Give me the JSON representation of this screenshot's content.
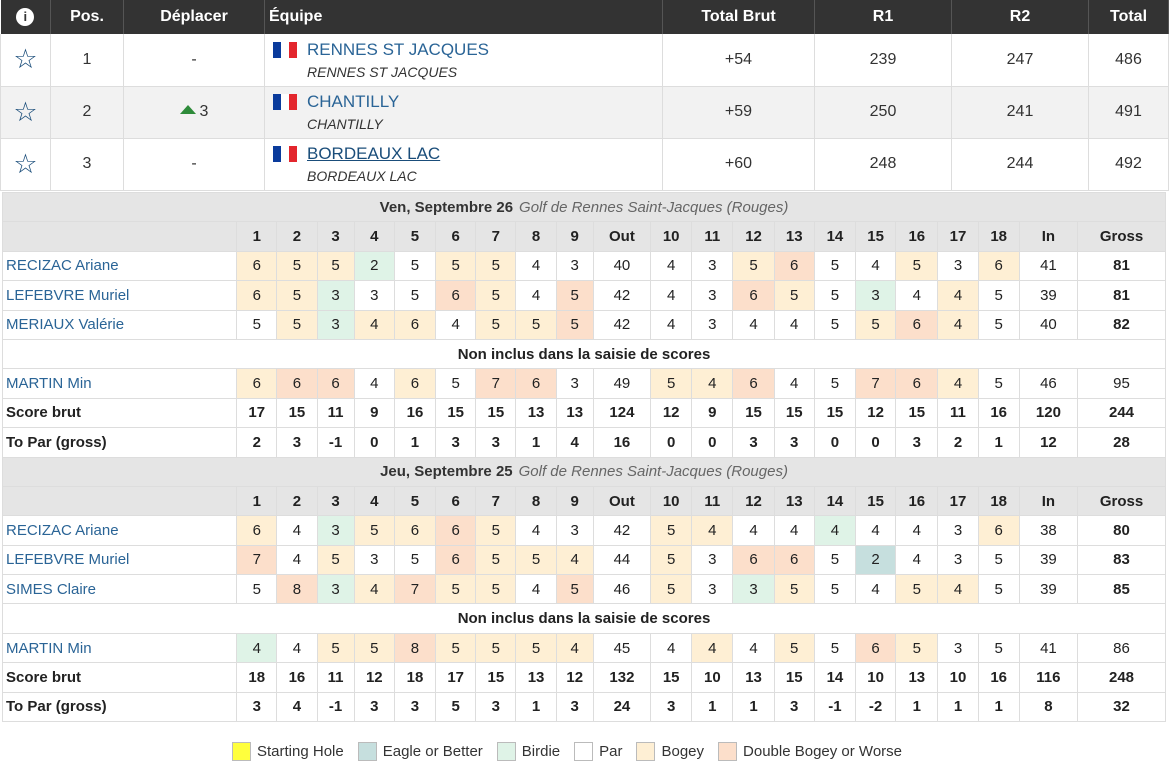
{
  "header": {
    "info": "i",
    "pos": "Pos.",
    "move": "Déplacer",
    "team": "Équipe",
    "total_brut": "Total Brut",
    "r1": "R1",
    "r2": "R2",
    "total": "Total"
  },
  "teams": [
    {
      "pos": "1",
      "move": "-",
      "move_up": false,
      "name": "RENNES ST JACQUES",
      "sub": "RENNES ST JACQUES",
      "total_brut": "+54",
      "r1": "239",
      "r2": "247",
      "total": "486",
      "underline": false
    },
    {
      "pos": "2",
      "move": "3",
      "move_up": true,
      "name": "CHANTILLY",
      "sub": "CHANTILLY",
      "total_brut": "+59",
      "r1": "250",
      "r2": "241",
      "total": "491",
      "underline": false
    },
    {
      "pos": "3",
      "move": "-",
      "move_up": false,
      "name": "BORDEAUX LAC",
      "sub": "BORDEAUX LAC",
      "total_brut": "+60",
      "r1": "248",
      "r2": "244",
      "total": "492",
      "underline": true
    }
  ],
  "flag_colors": [
    "#0a3b9c",
    "#ffffff",
    "#e3262d"
  ],
  "scorecard": {
    "hole_headers": [
      "1",
      "2",
      "3",
      "4",
      "5",
      "6",
      "7",
      "8",
      "9",
      "Out",
      "10",
      "11",
      "12",
      "13",
      "14",
      "15",
      "16",
      "17",
      "18",
      "In",
      "Gross"
    ],
    "not_included_label": "Non inclus dans la saisie de scores",
    "rounds": [
      {
        "date": "Ven, Septembre 26",
        "course": "Golf de Rennes Saint-Jacques (Rouges)",
        "players": [
          {
            "name": "RECIZAC Ariane",
            "cells": [
              [
                "6",
                "g"
              ],
              [
                "5",
                "g"
              ],
              [
                "5",
                "g"
              ],
              [
                "2",
                "b"
              ],
              [
                "5",
                ""
              ],
              [
                "5",
                "g"
              ],
              [
                "5",
                "g"
              ],
              [
                "4",
                ""
              ],
              [
                "3",
                ""
              ],
              [
                "40",
                ""
              ],
              [
                "4",
                ""
              ],
              [
                "3",
                ""
              ],
              [
                "5",
                "g"
              ],
              [
                "6",
                "d"
              ],
              [
                "5",
                ""
              ],
              [
                "4",
                ""
              ],
              [
                "5",
                "g"
              ],
              [
                "3",
                ""
              ],
              [
                "6",
                "g"
              ],
              [
                "41",
                ""
              ],
              [
                "81",
                "t"
              ]
            ]
          },
          {
            "name": "LEFEBVRE Muriel",
            "cells": [
              [
                "6",
                "g"
              ],
              [
                "5",
                "g"
              ],
              [
                "3",
                "b"
              ],
              [
                "3",
                ""
              ],
              [
                "5",
                ""
              ],
              [
                "6",
                "d"
              ],
              [
                "5",
                "g"
              ],
              [
                "4",
                ""
              ],
              [
                "5",
                "d"
              ],
              [
                "42",
                ""
              ],
              [
                "4",
                ""
              ],
              [
                "3",
                ""
              ],
              [
                "6",
                "d"
              ],
              [
                "5",
                "g"
              ],
              [
                "5",
                ""
              ],
              [
                "3",
                "b"
              ],
              [
                "4",
                ""
              ],
              [
                "4",
                "g"
              ],
              [
                "5",
                ""
              ],
              [
                "39",
                ""
              ],
              [
                "81",
                "t"
              ]
            ]
          },
          {
            "name": "MERIAUX Valérie",
            "cells": [
              [
                "5",
                ""
              ],
              [
                "5",
                "g"
              ],
              [
                "3",
                "b"
              ],
              [
                "4",
                "g"
              ],
              [
                "6",
                "g"
              ],
              [
                "4",
                ""
              ],
              [
                "5",
                "g"
              ],
              [
                "5",
                "g"
              ],
              [
                "5",
                "d"
              ],
              [
                "42",
                ""
              ],
              [
                "4",
                ""
              ],
              [
                "3",
                ""
              ],
              [
                "4",
                ""
              ],
              [
                "4",
                ""
              ],
              [
                "5",
                ""
              ],
              [
                "5",
                "g"
              ],
              [
                "6",
                "d"
              ],
              [
                "4",
                "g"
              ],
              [
                "5",
                ""
              ],
              [
                "40",
                ""
              ],
              [
                "82",
                "t"
              ]
            ]
          }
        ],
        "excluded": [
          {
            "name": "MARTIN Min",
            "cells": [
              [
                "6",
                "g"
              ],
              [
                "6",
                "d"
              ],
              [
                "6",
                "d"
              ],
              [
                "4",
                ""
              ],
              [
                "6",
                "g"
              ],
              [
                "5",
                ""
              ],
              [
                "7",
                "d"
              ],
              [
                "6",
                "d"
              ],
              [
                "3",
                ""
              ],
              [
                "49",
                ""
              ],
              [
                "5",
                "g"
              ],
              [
                "4",
                "g"
              ],
              [
                "6",
                "d"
              ],
              [
                "4",
                ""
              ],
              [
                "5",
                ""
              ],
              [
                "7",
                "d"
              ],
              [
                "6",
                "d"
              ],
              [
                "4",
                "g"
              ],
              [
                "5",
                ""
              ],
              [
                "46",
                ""
              ],
              [
                "95",
                ""
              ]
            ]
          }
        ],
        "score_brut_label": "Score brut",
        "score_brut": [
          "17",
          "15",
          "11",
          "9",
          "16",
          "15",
          "15",
          "13",
          "13",
          "124",
          "12",
          "9",
          "15",
          "15",
          "15",
          "12",
          "15",
          "11",
          "16",
          "120",
          "244"
        ],
        "to_par_label": "To Par (gross)",
        "to_par": [
          "2",
          "3",
          "-1",
          "0",
          "1",
          "3",
          "3",
          "1",
          "4",
          "16",
          "0",
          "0",
          "3",
          "3",
          "0",
          "0",
          "3",
          "2",
          "1",
          "12",
          "28"
        ]
      },
      {
        "date": "Jeu, Septembre 25",
        "course": "Golf de Rennes Saint-Jacques (Rouges)",
        "players": [
          {
            "name": "RECIZAC Ariane",
            "cells": [
              [
                "6",
                "g"
              ],
              [
                "4",
                ""
              ],
              [
                "3",
                "b"
              ],
              [
                "5",
                "g"
              ],
              [
                "6",
                "g"
              ],
              [
                "6",
                "d"
              ],
              [
                "5",
                "g"
              ],
              [
                "4",
                ""
              ],
              [
                "3",
                ""
              ],
              [
                "42",
                ""
              ],
              [
                "5",
                "g"
              ],
              [
                "4",
                "g"
              ],
              [
                "4",
                ""
              ],
              [
                "4",
                ""
              ],
              [
                "4",
                "b"
              ],
              [
                "4",
                ""
              ],
              [
                "4",
                ""
              ],
              [
                "3",
                ""
              ],
              [
                "6",
                "g"
              ],
              [
                "38",
                ""
              ],
              [
                "80",
                "t"
              ]
            ]
          },
          {
            "name": "LEFEBVRE Muriel",
            "cells": [
              [
                "7",
                "d"
              ],
              [
                "4",
                ""
              ],
              [
                "5",
                "g"
              ],
              [
                "3",
                ""
              ],
              [
                "5",
                ""
              ],
              [
                "6",
                "d"
              ],
              [
                "5",
                "g"
              ],
              [
                "5",
                "g"
              ],
              [
                "4",
                "g"
              ],
              [
                "44",
                ""
              ],
              [
                "5",
                "g"
              ],
              [
                "3",
                ""
              ],
              [
                "6",
                "d"
              ],
              [
                "6",
                "d"
              ],
              [
                "5",
                ""
              ],
              [
                "2",
                "e"
              ],
              [
                "4",
                ""
              ],
              [
                "3",
                ""
              ],
              [
                "5",
                ""
              ],
              [
                "39",
                ""
              ],
              [
                "83",
                "t"
              ]
            ]
          },
          {
            "name": "SIMES Claire",
            "cells": [
              [
                "5",
                ""
              ],
              [
                "8",
                "d"
              ],
              [
                "3",
                "b"
              ],
              [
                "4",
                "g"
              ],
              [
                "7",
                "d"
              ],
              [
                "5",
                "g"
              ],
              [
                "5",
                "g"
              ],
              [
                "4",
                ""
              ],
              [
                "5",
                "d"
              ],
              [
                "46",
                ""
              ],
              [
                "5",
                "g"
              ],
              [
                "3",
                ""
              ],
              [
                "3",
                "b"
              ],
              [
                "5",
                "g"
              ],
              [
                "5",
                ""
              ],
              [
                "4",
                ""
              ],
              [
                "5",
                "g"
              ],
              [
                "4",
                "g"
              ],
              [
                "5",
                ""
              ],
              [
                "39",
                ""
              ],
              [
                "85",
                "t"
              ]
            ]
          }
        ],
        "excluded": [
          {
            "name": "MARTIN Min",
            "cells": [
              [
                "4",
                "b"
              ],
              [
                "4",
                ""
              ],
              [
                "5",
                "g"
              ],
              [
                "5",
                "g"
              ],
              [
                "8",
                "d"
              ],
              [
                "5",
                "g"
              ],
              [
                "5",
                "g"
              ],
              [
                "5",
                "g"
              ],
              [
                "4",
                "g"
              ],
              [
                "45",
                ""
              ],
              [
                "4",
                ""
              ],
              [
                "4",
                "g"
              ],
              [
                "4",
                ""
              ],
              [
                "5",
                "g"
              ],
              [
                "5",
                ""
              ],
              [
                "6",
                "d"
              ],
              [
                "5",
                "g"
              ],
              [
                "3",
                ""
              ],
              [
                "5",
                ""
              ],
              [
                "41",
                ""
              ],
              [
                "86",
                ""
              ]
            ]
          }
        ],
        "score_brut_label": "Score brut",
        "score_brut": [
          "18",
          "16",
          "11",
          "12",
          "18",
          "17",
          "15",
          "13",
          "12",
          "132",
          "15",
          "10",
          "13",
          "15",
          "14",
          "10",
          "13",
          "10",
          "16",
          "116",
          "248"
        ],
        "to_par_label": "To Par (gross)",
        "to_par": [
          "3",
          "4",
          "-1",
          "3",
          "3",
          "5",
          "3",
          "1",
          "3",
          "24",
          "3",
          "1",
          "1",
          "3",
          "-1",
          "-2",
          "1",
          "1",
          "1",
          "8",
          "32"
        ]
      }
    ]
  },
  "legend": [
    {
      "label": "Starting Hole",
      "color": "#ffff3d"
    },
    {
      "label": "Eagle or Better",
      "color": "#c6dfde"
    },
    {
      "label": "Birdie",
      "color": "#dff3e7"
    },
    {
      "label": "Par",
      "color": "#ffffff"
    },
    {
      "label": "Bogey",
      "color": "#feefd4"
    },
    {
      "label": "Double Bogey or Worse",
      "color": "#fcdfcb"
    }
  ]
}
